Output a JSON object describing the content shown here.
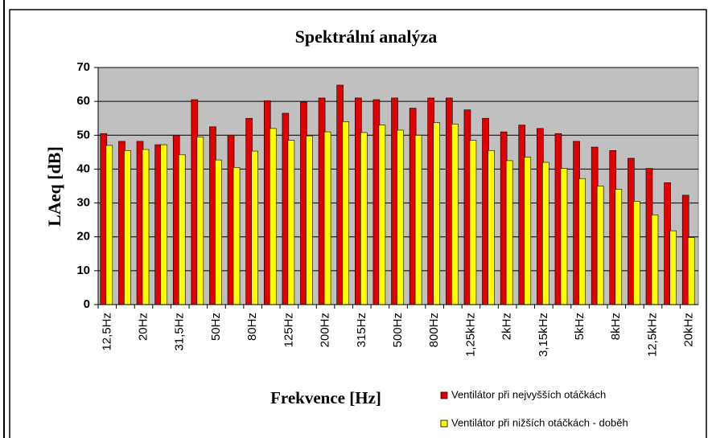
{
  "chart_data": {
    "type": "bar",
    "title": "Spektrální analýza",
    "x_label": "Frekvence [Hz]",
    "y_label": "LAeq [dB]",
    "categories": [
      "12,5Hz",
      null,
      "20Hz",
      null,
      "31,5Hz",
      null,
      "50Hz",
      null,
      "80Hz",
      null,
      "125Hz",
      null,
      "200Hz",
      null,
      "315Hz",
      null,
      "500Hz",
      null,
      "800Hz",
      null,
      "1,25kHz",
      null,
      "2kHz",
      null,
      "3,15kHz",
      null,
      "5kHz",
      null,
      "8kHz",
      null,
      "12,5kHz",
      null,
      "20kHz"
    ],
    "series": [
      {
        "name": "Ventilátor při nejvyšších otáčkách",
        "color": "#e00000",
        "values": [
          50.5,
          48.2,
          48.2,
          47.2,
          50,
          60.5,
          52.5,
          50,
          55,
          60.2,
          56.5,
          59.8,
          61,
          64.8,
          61,
          60.5,
          61,
          58,
          61,
          61,
          57.5,
          55,
          51,
          53,
          52,
          50.5,
          48.2,
          46.5,
          45.5,
          43.2,
          40.2,
          36,
          32.3
        ]
      },
      {
        "name": "Ventilátor při nižších otáčkách - doběh",
        "color": "#ffff00",
        "values": [
          47,
          45.5,
          45.8,
          47.2,
          44.3,
          49.5,
          42.7,
          40.5,
          45.3,
          52,
          48.5,
          49.8,
          51,
          54,
          50.8,
          53,
          51.5,
          50,
          53.7,
          53.3,
          48.5,
          45.5,
          42.5,
          43.5,
          42,
          40.2,
          37.2,
          35,
          34,
          30.5,
          26.5,
          21.8,
          19.8
        ]
      }
    ],
    "ylim": [
      0,
      70
    ],
    "yticks": [
      0,
      10,
      20,
      30,
      40,
      50,
      60,
      70
    ],
    "grid": true,
    "legend": "bottom-right"
  }
}
